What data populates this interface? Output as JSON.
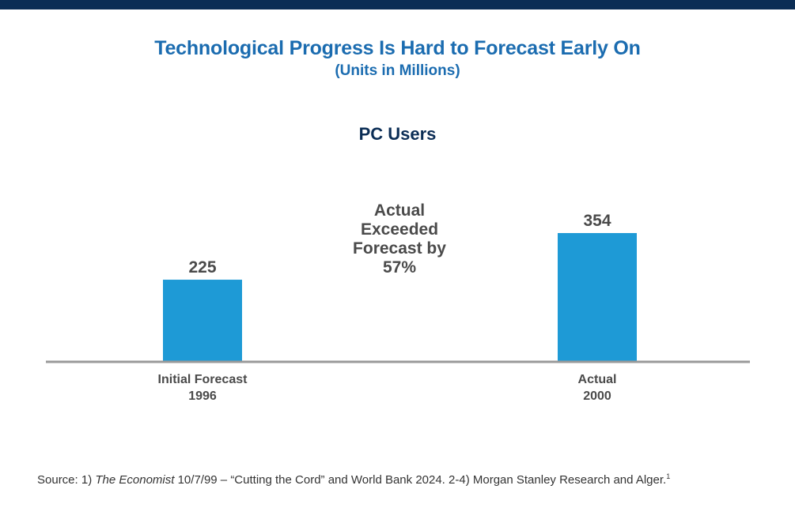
{
  "header": {
    "title": "Technological Progress Is Hard to Forecast Early On",
    "subtitle": "(Units in Millions)"
  },
  "colors": {
    "top_bar": "#0b2d55",
    "title": "#1b6cb0",
    "chart_title": "#0b2d55",
    "bar": "#1e9ad6",
    "axis": "#9a9a9a",
    "label_text": "#4a4a4a"
  },
  "annotation": {
    "lines": [
      "Actual",
      "Exceeded",
      "Forecast by",
      "57%"
    ]
  },
  "chart_data": {
    "type": "bar",
    "title": "PC Users",
    "categories": [
      [
        "Initial Forecast",
        "1996"
      ],
      [
        "Actual",
        "2000"
      ]
    ],
    "values": [
      225,
      354
    ],
    "data_labels": [
      "225",
      "354"
    ],
    "xlabel": "",
    "ylabel": "",
    "ylim": [
      0,
      354
    ],
    "grid": false
  },
  "source": {
    "prefix": "Source: 1) ",
    "publication": "The Economist",
    "rest": " 10/7/99 – “Cutting the Cord” and World Bank 2024. 2-4) Morgan Stanley Research and Alger.",
    "footnote_mark": "1"
  }
}
